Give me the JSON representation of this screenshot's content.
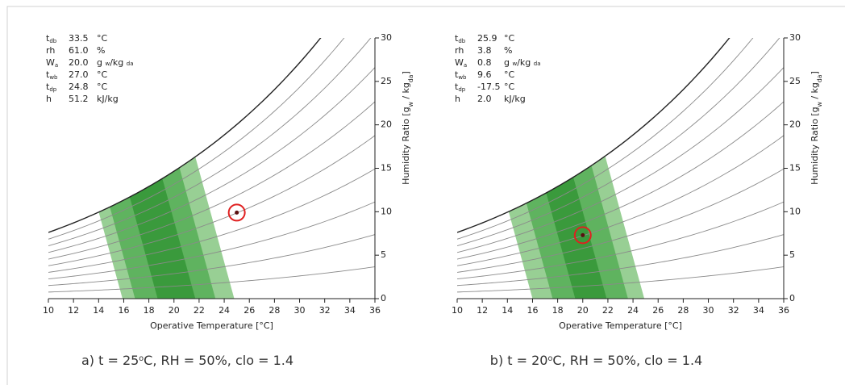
{
  "chart_data": [
    {
      "type": "psychrometric",
      "info": [
        {
          "symbol": "t",
          "symbol_sub": "db",
          "value": "33.5",
          "unit": [
            {
              "text": "°C"
            }
          ]
        },
        {
          "symbol": "rh",
          "symbol_sub": "",
          "value": "61.0",
          "unit": [
            {
              "text": "%"
            }
          ]
        },
        {
          "symbol": "W",
          "symbol_sub": "a",
          "value": "20.0",
          "unit": [
            {
              "text": "g "
            },
            {
              "text": "w",
              "sub": true
            },
            {
              "text": "/kg "
            },
            {
              "text": "da",
              "sub": true
            }
          ]
        },
        {
          "symbol": "t",
          "symbol_sub": "wb",
          "value": "27.0",
          "unit": [
            {
              "text": "°C"
            }
          ]
        },
        {
          "symbol": "t",
          "symbol_sub": "dp",
          "value": "24.8",
          "unit": [
            {
              "text": "°C"
            }
          ]
        },
        {
          "symbol": "h",
          "symbol_sub": "",
          "value": "51.2",
          "unit": [
            {
              "text": "kJ/kg"
            }
          ]
        }
      ],
      "xlabel": "Operative Temperature [°C]",
      "ylabel": [
        {
          "text": "Humidity Ratio [g"
        },
        {
          "text": "w",
          "sub": true
        },
        {
          "text": " / kg"
        },
        {
          "text": "da",
          "sub": true
        },
        {
          "text": "]"
        }
      ],
      "caption": [
        {
          "text": "a) t = 25"
        },
        {
          "text": "o",
          "sup": true
        },
        {
          "text": "C, RH = 50%, clo = 1.4"
        }
      ],
      "xlim": [
        10,
        36
      ],
      "xticks": [
        10,
        12,
        14,
        16,
        18,
        20,
        22,
        24,
        26,
        28,
        30,
        32,
        34,
        36
      ],
      "ylim": [
        0,
        30
      ],
      "yticks": [
        0,
        5,
        10,
        15,
        20,
        25,
        30
      ],
      "rh_curves": [
        10,
        20,
        30,
        40,
        50,
        60,
        70,
        80,
        90,
        100
      ],
      "curve_color": "#8a8a8a",
      "saturation_color": "#222222",
      "zone_slope": -0.19,
      "zones": [
        {
          "bounds": [
            15.9,
            24.8
          ],
          "color": "#98cf94"
        },
        {
          "bounds": [
            16.9,
            23.3
          ],
          "color": "#5fb35f"
        },
        {
          "bounds": [
            18.7,
            21.7
          ],
          "color": "#3a9a3c"
        }
      ],
      "point": {
        "x": 25,
        "y": 9.9
      },
      "point_color": "#e02020"
    },
    {
      "type": "psychrometric",
      "info": [
        {
          "symbol": "t",
          "symbol_sub": "db",
          "value": "25.9",
          "unit": [
            {
              "text": "°C"
            }
          ]
        },
        {
          "symbol": "rh",
          "symbol_sub": "",
          "value": "3.8",
          "unit": [
            {
              "text": "%"
            }
          ]
        },
        {
          "symbol": "W",
          "symbol_sub": "a",
          "value": "0.8",
          "unit": [
            {
              "text": "g "
            },
            {
              "text": "w",
              "sub": true
            },
            {
              "text": "/kg "
            },
            {
              "text": "da",
              "sub": true
            }
          ]
        },
        {
          "symbol": "t",
          "symbol_sub": "wb",
          "value": "9.6",
          "unit": [
            {
              "text": "°C"
            }
          ]
        },
        {
          "symbol": "t",
          "symbol_sub": "dp",
          "value": "-17.5",
          "unit": [
            {
              "text": "°C"
            }
          ]
        },
        {
          "symbol": "h",
          "symbol_sub": "",
          "value": "2.0",
          "unit": [
            {
              "text": "kJ/kg"
            }
          ]
        }
      ],
      "xlabel": "Operative Temperature [°C]",
      "ylabel": [
        {
          "text": "Humidity Ratio [g"
        },
        {
          "text": "w",
          "sub": true
        },
        {
          "text": " / kg"
        },
        {
          "text": "da",
          "sub": true
        },
        {
          "text": "]"
        }
      ],
      "caption": [
        {
          "text": "b) t = 20"
        },
        {
          "text": "o",
          "sup": true
        },
        {
          "text": "C, RH = 50%, clo = 1.4"
        }
      ],
      "xlim": [
        10,
        36
      ],
      "xticks": [
        10,
        12,
        14,
        16,
        18,
        20,
        22,
        24,
        26,
        28,
        30,
        32,
        34,
        36
      ],
      "ylim": [
        0,
        30
      ],
      "yticks": [
        0,
        5,
        10,
        15,
        20,
        25,
        30
      ],
      "rh_curves": [
        10,
        20,
        30,
        40,
        50,
        60,
        70,
        80,
        90,
        100
      ],
      "curve_color": "#8a8a8a",
      "saturation_color": "#222222",
      "zone_slope": -0.19,
      "zones": [
        {
          "bounds": [
            16.0,
            24.9
          ],
          "color": "#98cf94"
        },
        {
          "bounds": [
            17.6,
            23.6
          ],
          "color": "#5fb35f"
        },
        {
          "bounds": [
            19.4,
            21.9
          ],
          "color": "#3a9a3c"
        }
      ],
      "point": {
        "x": 20,
        "y": 7.3
      },
      "point_color": "#e02020"
    }
  ]
}
